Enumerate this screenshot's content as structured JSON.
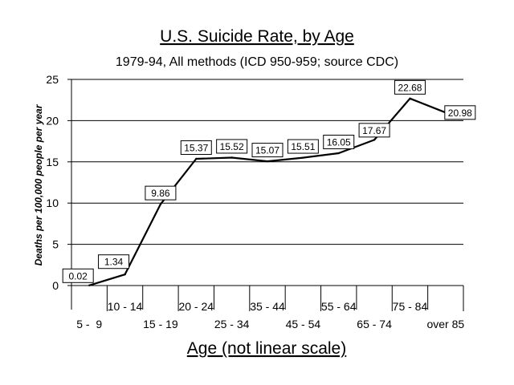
{
  "chart_data": {
    "type": "line",
    "title": "U.S. Suicide Rate, by Age",
    "subtitle": "1979-94, All methods (ICD 950-959; source CDC)",
    "xlabel": "Age (not linear scale)",
    "ylabel": "Deaths per 100,000 people per year",
    "ylim": [
      0,
      25
    ],
    "yticks": [
      0,
      5,
      10,
      15,
      20,
      25
    ],
    "grid": true,
    "categories": [
      "5 -  9",
      "10 - 14",
      "15 - 19",
      "20 - 24",
      "25 - 34",
      "35 - 44",
      "45 - 54",
      "55 - 64",
      "65 - 74",
      "75 - 84",
      "over 85"
    ],
    "series": [
      {
        "values": [
          0.02,
          1.34,
          9.86,
          15.37,
          15.52,
          15.07,
          15.51,
          16.05,
          17.67,
          22.68,
          20.98
        ],
        "labels": [
          "0.02",
          "1.34",
          "9.86",
          "15.37",
          "15.52",
          "15.07",
          "15.51",
          "16.05",
          "17.67",
          "22.68",
          "20.98"
        ]
      }
    ]
  }
}
